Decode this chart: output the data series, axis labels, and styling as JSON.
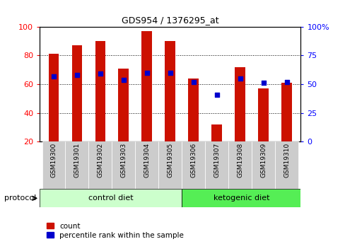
{
  "title": "GDS954 / 1376295_at",
  "samples": [
    "GSM19300",
    "GSM19301",
    "GSM19302",
    "GSM19303",
    "GSM19304",
    "GSM19305",
    "GSM19306",
    "GSM19307",
    "GSM19308",
    "GSM19309",
    "GSM19310"
  ],
  "counts": [
    81,
    87,
    90,
    71,
    97,
    90,
    64,
    32,
    72,
    57,
    61
  ],
  "percentiles": [
    57,
    58,
    59,
    54,
    60,
    60,
    52,
    41,
    55,
    51,
    52
  ],
  "ylim_left": [
    20,
    100
  ],
  "ylim_right": [
    0,
    100
  ],
  "yticks_left": [
    20,
    40,
    60,
    80,
    100
  ],
  "yticks_right": [
    0,
    25,
    50,
    75,
    100
  ],
  "ytick_labels_right": [
    "0",
    "25",
    "50",
    "75",
    "100%"
  ],
  "bar_color": "#cc1100",
  "dot_color": "#0000cc",
  "bar_width": 0.45,
  "n_control": 6,
  "n_keto": 5,
  "control_diet_label": "control diet",
  "ketogenic_diet_label": "ketogenic diet",
  "protocol_label": "protocol",
  "legend_count": "count",
  "legend_percentile": "percentile rank within the sample",
  "control_bg": "#ccffcc",
  "ketogenic_bg": "#55ee55",
  "xlabel_bg": "#cccccc",
  "bar_bottom": 20,
  "grid_yticks": [
    40,
    60,
    80
  ]
}
